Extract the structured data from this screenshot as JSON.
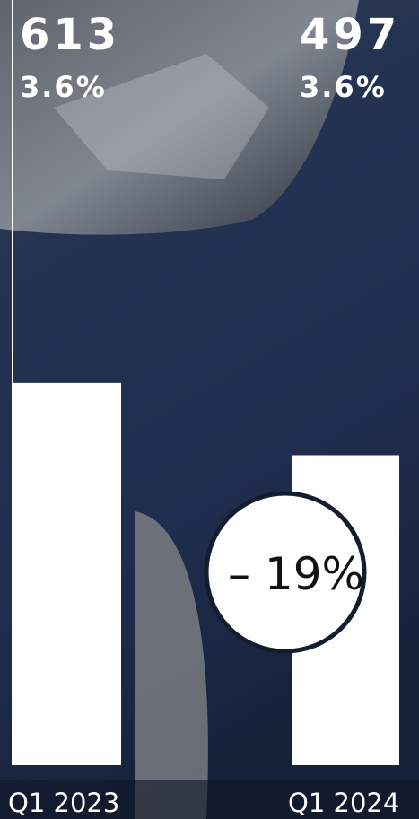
{
  "chart_data": {
    "type": "bar",
    "categories": [
      "Q1 2023",
      "Q1 2024"
    ],
    "values": [
      613,
      497
    ],
    "shares": [
      "3.6%",
      "3.6%"
    ],
    "annotation": "– 19%",
    "color": "#ffffff",
    "ylim": [
      0,
      1227
    ]
  }
}
